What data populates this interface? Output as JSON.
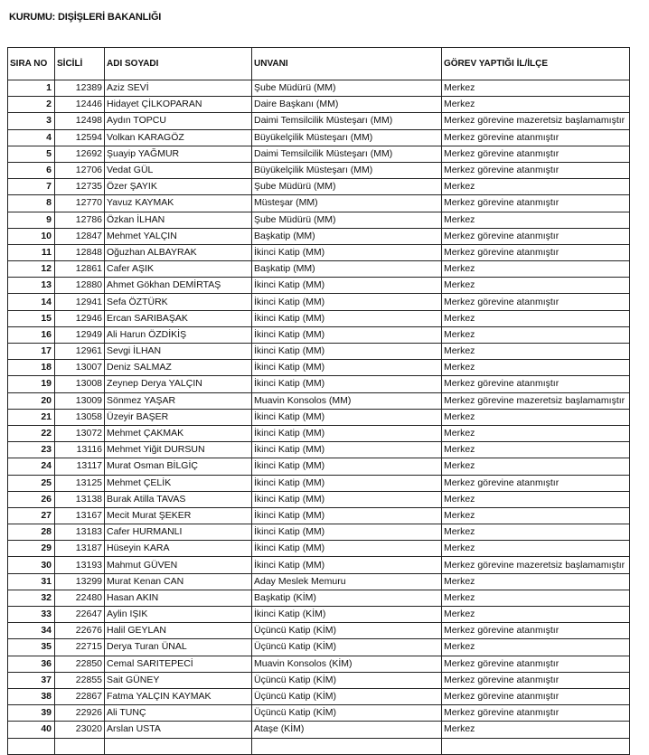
{
  "title": "KURUMU: DIŞİŞLERİ BAKANLIĞI",
  "headers": [
    "SIRA NO",
    "SİCİLİ",
    "ADI SOYADI",
    "UNVANI",
    "GÖREV YAPTIĞI İL/İLÇE"
  ],
  "rows": [
    [
      "1",
      "12389",
      "Aziz SEVİ",
      "Şube Müdürü (MM)",
      "Merkez"
    ],
    [
      "2",
      "12446",
      "Hidayet ÇİLKOPARAN",
      "Daire Başkanı (MM)",
      "Merkez"
    ],
    [
      "3",
      "12498",
      "Aydın TOPCU",
      "Daimi Temsilcilik Müsteşarı (MM)",
      "Merkez görevine mazeretsiz başlamamıştır"
    ],
    [
      "4",
      "12594",
      "Volkan KARAGÖZ",
      "Büyükelçilik Müsteşarı (MM)",
      "Merkez görevine atanmıştır"
    ],
    [
      "5",
      "12692",
      "Şuayip YAĞMUR",
      "Daimi Temsilcilik Müsteşarı (MM)",
      "Merkez görevine atanmıştır"
    ],
    [
      "6",
      "12706",
      "Vedat GÜL",
      "Büyükelçilik Müsteşarı (MM)",
      "Merkez görevine atanmıştır"
    ],
    [
      "7",
      "12735",
      "Özer ŞAYIK",
      "Şube Müdürü (MM)",
      "Merkez"
    ],
    [
      "8",
      "12770",
      "Yavuz KAYMAK",
      "Müsteşar (MM)",
      "Merkez görevine atanmıştır"
    ],
    [
      "9",
      "12786",
      "Özkan İLHAN",
      "Şube Müdürü (MM)",
      "Merkez"
    ],
    [
      "10",
      "12847",
      "Mehmet YALÇIN",
      "Başkatip (MM)",
      "Merkez görevine atanmıştır"
    ],
    [
      "11",
      "12848",
      "Oğuzhan ALBAYRAK",
      "İkinci Katip (MM)",
      "Merkez görevine atanmıştır"
    ],
    [
      "12",
      "12861",
      "Cafer AŞIK",
      "Başkatip (MM)",
      "Merkez"
    ],
    [
      "13",
      "12880",
      "Ahmet Gökhan DEMİRTAŞ",
      "İkinci Katip (MM)",
      "Merkez"
    ],
    [
      "14",
      "12941",
      "Sefa ÖZTÜRK",
      "İkinci Katip (MM)",
      "Merkez görevine atanmıştır"
    ],
    [
      "15",
      "12946",
      "Ercan SARIBAŞAK",
      "İkinci Katip (MM)",
      "Merkez"
    ],
    [
      "16",
      "12949",
      "Ali Harun ÖZDİKİŞ",
      "İkinci Katip (MM)",
      "Merkez"
    ],
    [
      "17",
      "12961",
      "Sevgi İLHAN",
      "İkinci Katip (MM)",
      "Merkez"
    ],
    [
      "18",
      "13007",
      "Deniz SALMAZ",
      "İkinci Katip (MM)",
      "Merkez"
    ],
    [
      "19",
      "13008",
      "Zeynep Derya YALÇIN",
      "İkinci Katip (MM)",
      "Merkez görevine atanmıştır"
    ],
    [
      "20",
      "13009",
      "Sönmez YAŞAR",
      "Muavin Konsolos (MM)",
      "Merkez görevine mazeretsiz başlamamıştır"
    ],
    [
      "21",
      "13058",
      "Üzeyir BAŞER",
      "İkinci Katip (MM)",
      "Merkez"
    ],
    [
      "22",
      "13072",
      "Mehmet ÇAKMAK",
      "İkinci Katip (MM)",
      "Merkez"
    ],
    [
      "23",
      "13116",
      "Mehmet Yiğit DURSUN",
      "İkinci Katip (MM)",
      "Merkez"
    ],
    [
      "24",
      "13117",
      "Murat Osman BİLGİÇ",
      "İkinci Katip (MM)",
      "Merkez"
    ],
    [
      "25",
      "13125",
      "Mehmet ÇELİK",
      "İkinci Katip (MM)",
      "Merkez görevine atanmıştır"
    ],
    [
      "26",
      "13138",
      "Burak Atilla TAVAS",
      "İkinci Katip (MM)",
      "Merkez"
    ],
    [
      "27",
      "13167",
      "Mecit Murat ŞEKER",
      "İkinci Katip (MM)",
      "Merkez"
    ],
    [
      "28",
      "13183",
      "Cafer HURMANLI",
      "İkinci Katip (MM)",
      "Merkez"
    ],
    [
      "29",
      "13187",
      "Hüseyin KARA",
      "İkinci Katip (MM)",
      "Merkez"
    ],
    [
      "30",
      "13193",
      "Mahmut GÜVEN",
      "İkinci Katip (MM)",
      "Merkez görevine mazeretsiz başlamamıştır"
    ],
    [
      "31",
      "13299",
      "Murat Kenan CAN",
      "Aday Meslek Memuru",
      "Merkez"
    ],
    [
      "32",
      "22480",
      "Hasan AKIN",
      "Başkatip (KİM)",
      "Merkez"
    ],
    [
      "33",
      "22647",
      "Aylin IŞIK",
      "İkinci Katip (KİM)",
      "Merkez"
    ],
    [
      "34",
      "22676",
      "Halil GEYLAN",
      "Üçüncü Katip (KİM)",
      "Merkez görevine atanmıştır"
    ],
    [
      "35",
      "22715",
      "Derya Turan ÜNAL",
      "Üçüncü Katip (KİM)",
      "Merkez"
    ],
    [
      "36",
      "22850",
      "Cemal SARITEPECİ",
      "Muavin Konsolos (KİM)",
      "Merkez görevine atanmıştır"
    ],
    [
      "37",
      "22855",
      "Sait GÜNEY",
      "Üçüncü Katip (KİM)",
      "Merkez görevine atanmıştır"
    ],
    [
      "38",
      "22867",
      "Fatma YALÇIN KAYMAK",
      "Üçüncü Katip (KİM)",
      "Merkez görevine atanmıştır"
    ],
    [
      "39",
      "22926",
      "Ali TUNÇ",
      "Üçüncü Katip (KİM)",
      "Merkez görevine atanmıştır"
    ],
    [
      "40",
      "23020",
      "Arslan USTA",
      "Ataşe (KİM)",
      "Merkez"
    ]
  ]
}
